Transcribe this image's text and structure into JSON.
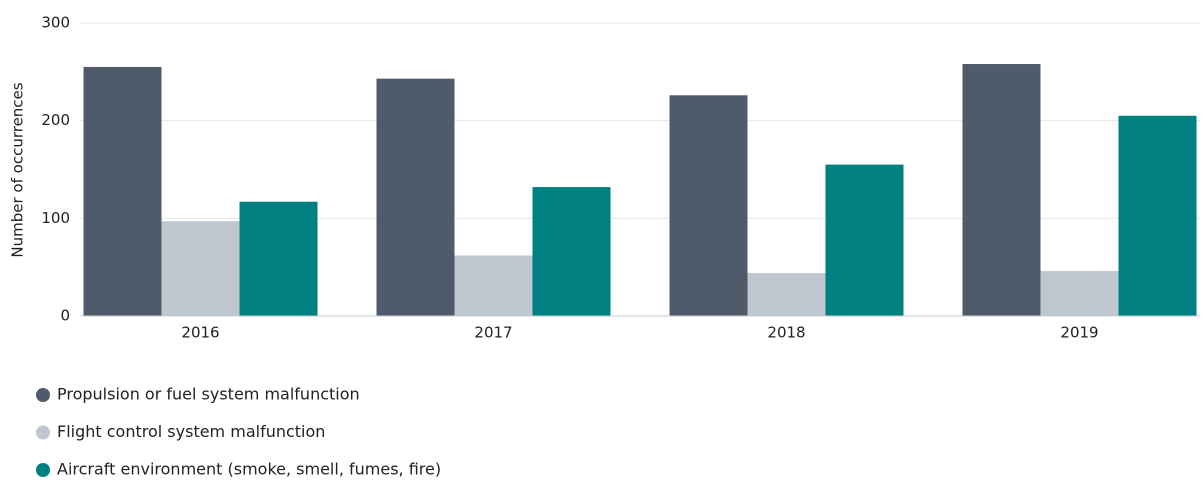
{
  "chart_data": {
    "type": "bar",
    "y_label": "Number of occurrences",
    "categories": [
      "2016",
      "2017",
      "2018",
      "2019"
    ],
    "series": [
      {
        "name": "Propulsion or fuel system malfunction",
        "color": "#4f5b6b",
        "values": [
          255,
          243,
          226,
          258
        ]
      },
      {
        "name": "Flight control system malfunction",
        "color": "#c0c6cf",
        "values": [
          97,
          62,
          44,
          46
        ]
      },
      {
        "name": "Aircraft environment (smoke, smell, fumes, fire)",
        "color": "#008080",
        "values": [
          117,
          132,
          155,
          205
        ]
      }
    ],
    "ylim": [
      0,
      300
    ],
    "yticks": [
      0,
      100,
      200,
      300
    ],
    "grid": true
  }
}
